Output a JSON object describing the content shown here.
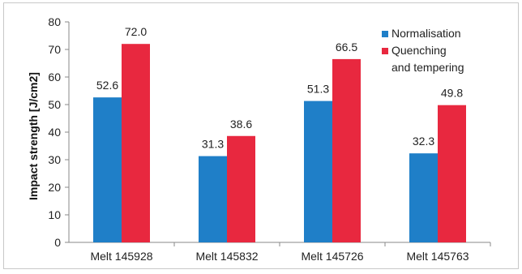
{
  "chart_data": {
    "type": "bar",
    "title": "",
    "xlabel": "",
    "ylabel": "Impact strength  [J/cm2]",
    "ylim": [
      0,
      80
    ],
    "yticks": [
      0,
      10,
      20,
      30,
      40,
      50,
      60,
      70,
      80
    ],
    "grid": false,
    "legend_position": "top-right",
    "categories": [
      "Melt 145928",
      "Melt 145832",
      "Melt 145726",
      "Melt 145763"
    ],
    "series": [
      {
        "name": "Normalisation",
        "color": "#1f7fc8",
        "values": [
          52.6,
          31.3,
          51.3,
          32.3
        ],
        "labels": [
          "52.6",
          "31.3",
          "51.3",
          "32.3"
        ]
      },
      {
        "name": "Quenching and tempering",
        "legend_lines": [
          "Quenching",
          "and tempering"
        ],
        "color": "#e8283f",
        "values": [
          72.0,
          38.6,
          66.5,
          49.8
        ],
        "labels": [
          "72.0",
          "38.6",
          "66.5",
          "49.8"
        ]
      }
    ]
  }
}
